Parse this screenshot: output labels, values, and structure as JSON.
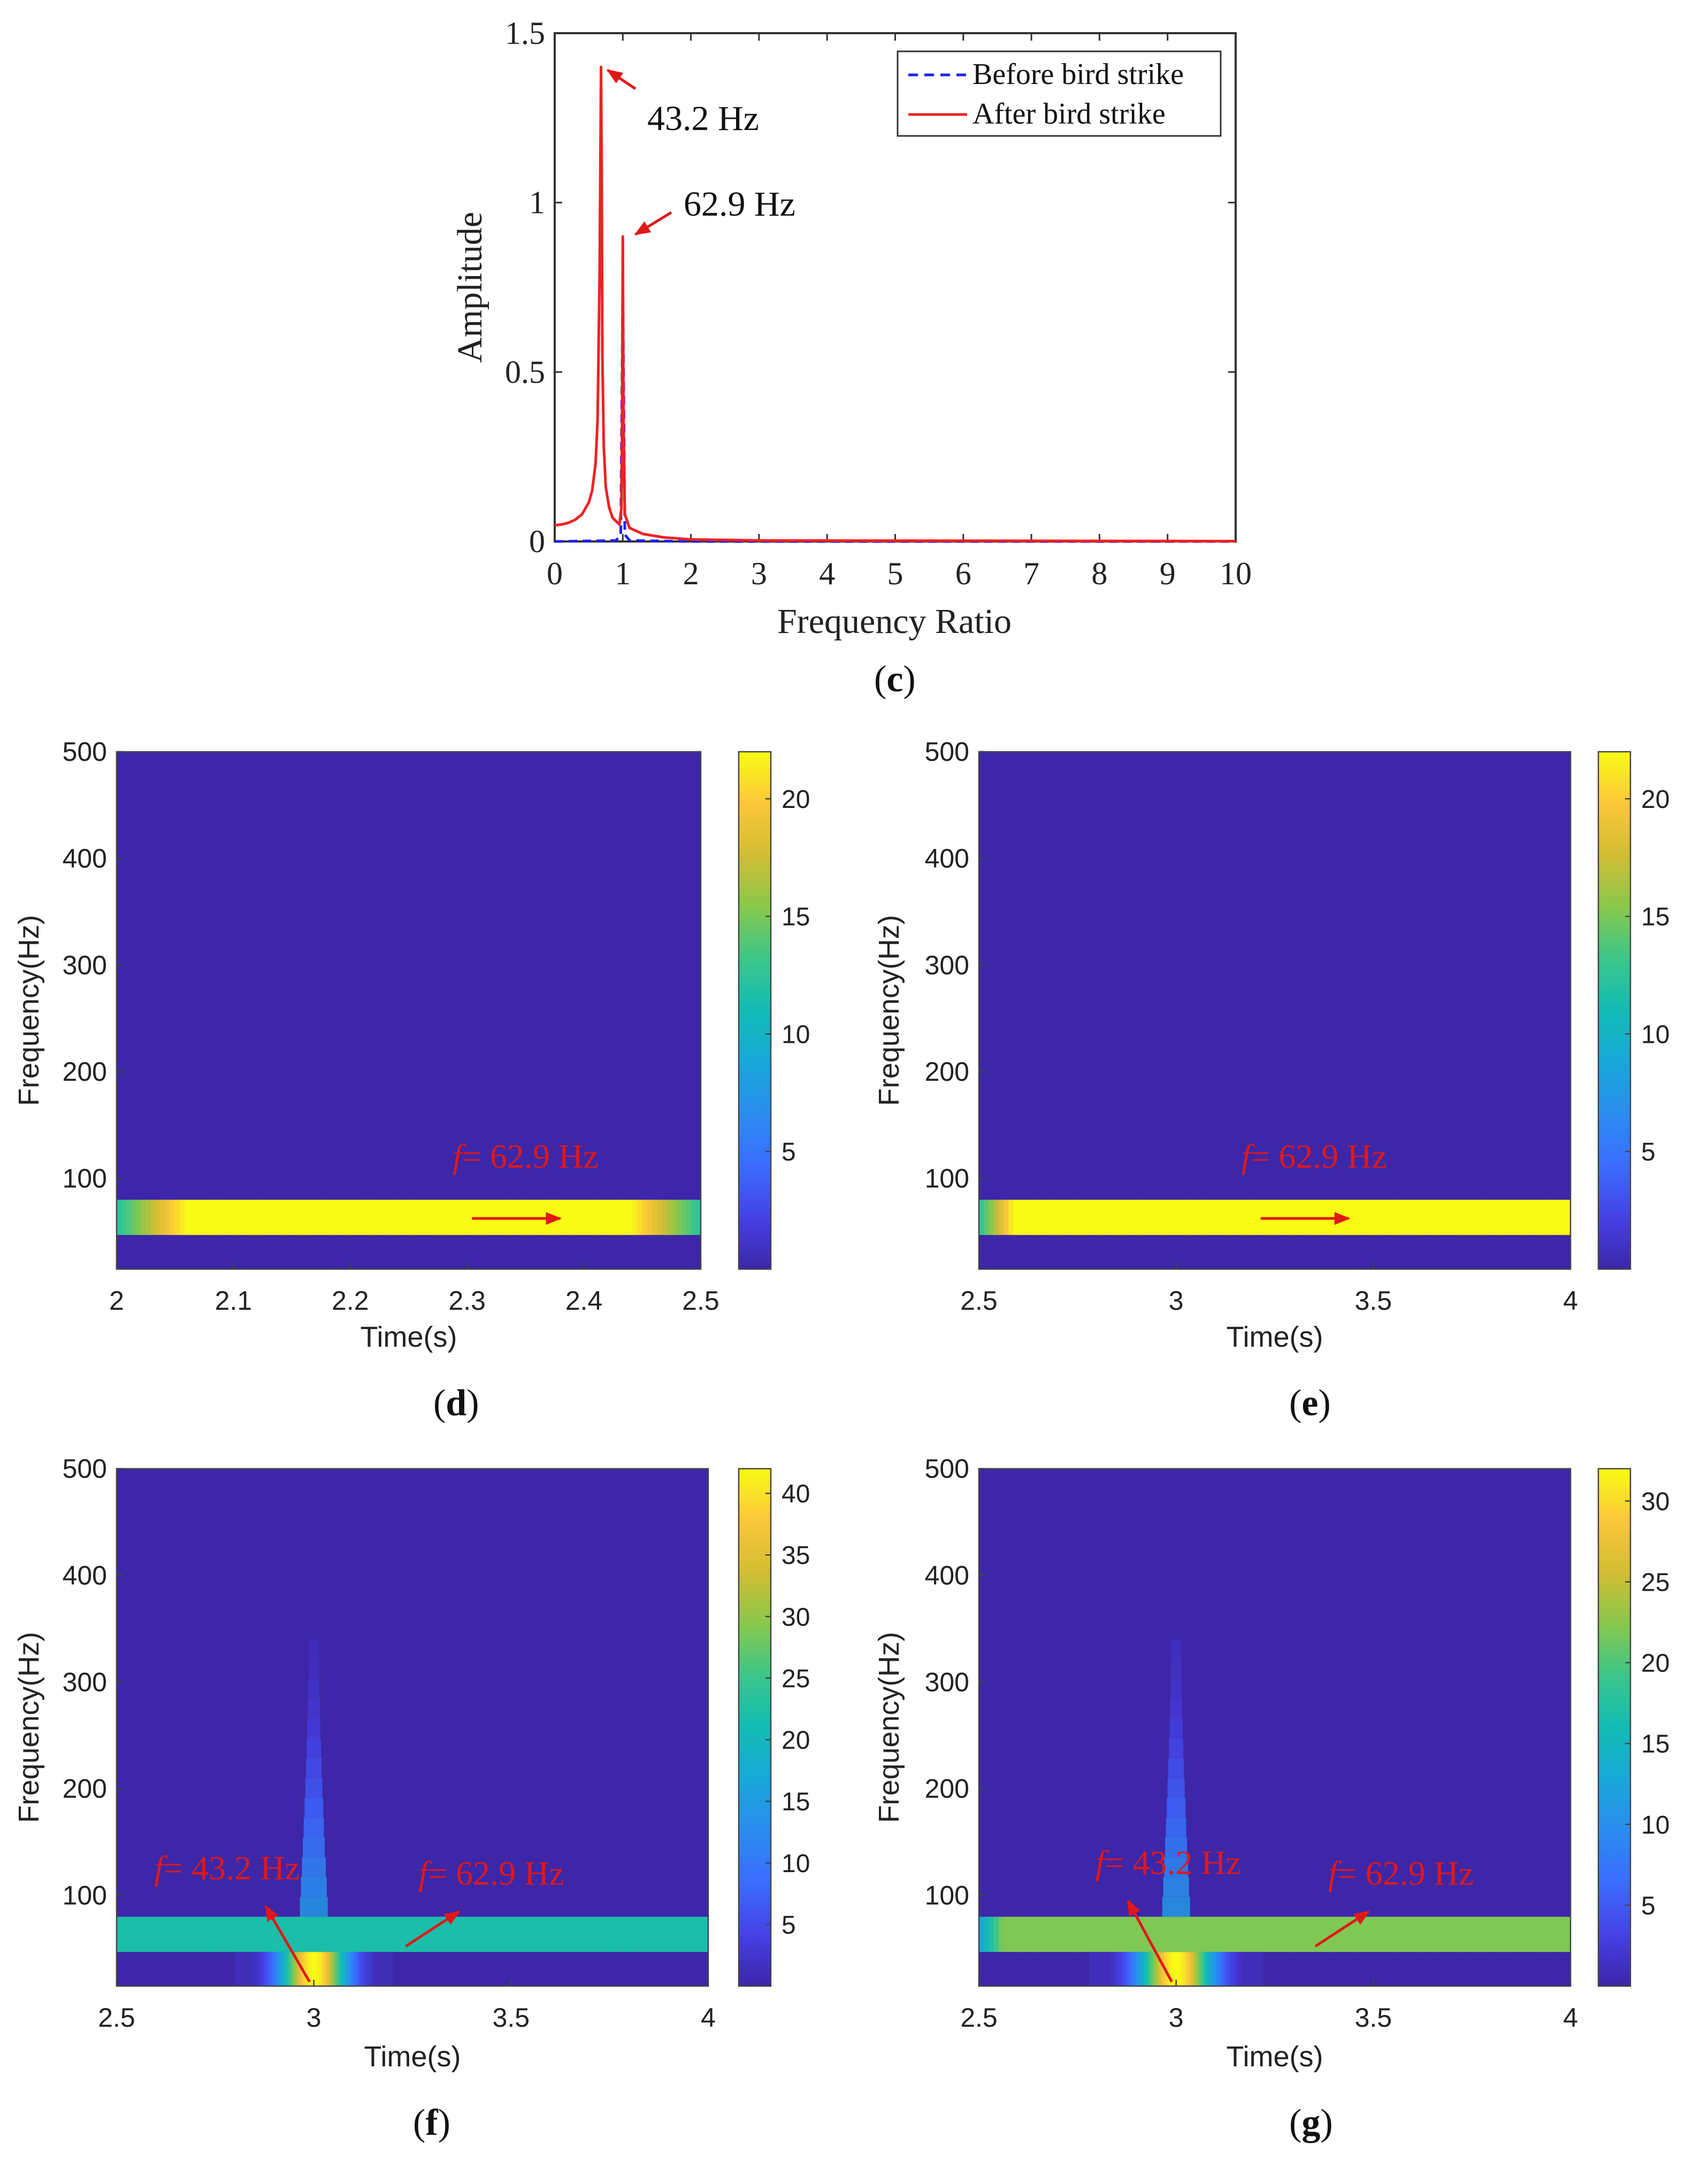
{
  "colors": {
    "before": "#1f1ff0",
    "after": "#ee2222",
    "annotation": "#e01818",
    "parula_low": "#3d26a8",
    "parula_high": "#f9fb14"
  },
  "chart_data": [
    {
      "id": "c",
      "type": "line",
      "panel_label": "c",
      "xlabel": "Frequency Ratio",
      "ylabel": "Amplitude",
      "xlim": [
        0,
        10
      ],
      "ylim": [
        0,
        1.5
      ],
      "xticks": [
        "0",
        "1",
        "2",
        "3",
        "4",
        "5",
        "6",
        "7",
        "8",
        "9",
        "10"
      ],
      "yticks": [
        "0",
        "0.5",
        "1",
        "1.5"
      ],
      "legend_position": "top-right",
      "series": [
        {
          "name": "Before bird strike",
          "style": "dashed",
          "x": [
            0,
            0.9,
            0.97,
            1.0,
            1.03,
            1.1,
            2,
            10
          ],
          "y": [
            0,
            0.003,
            0.02,
            0.78,
            0.02,
            0.003,
            0,
            0
          ]
        },
        {
          "name": "After bird strike",
          "style": "solid",
          "x": [
            0,
            0.1,
            0.2,
            0.3,
            0.4,
            0.5,
            0.55,
            0.6,
            0.63,
            0.66,
            0.68,
            0.69,
            0.7,
            0.72,
            0.75,
            0.8,
            0.85,
            0.9,
            0.95,
            0.98,
            0.99,
            1.0,
            1.01,
            1.03,
            1.1,
            1.3,
            1.6,
            2.0,
            3,
            10
          ],
          "y": [
            0.048,
            0.05,
            0.055,
            0.064,
            0.08,
            0.115,
            0.15,
            0.23,
            0.36,
            0.8,
            1.4,
            1.1,
            0.55,
            0.28,
            0.16,
            0.1,
            0.07,
            0.06,
            0.05,
            0.1,
            0.35,
            0.9,
            0.35,
            0.08,
            0.04,
            0.022,
            0.012,
            0.006,
            0.003,
            0.001
          ]
        }
      ],
      "annotations": [
        {
          "text": "43.2 Hz",
          "x": 0.68,
          "y": 1.4
        },
        {
          "text": "62.9 Hz",
          "x": 1.0,
          "y": 0.9
        }
      ]
    },
    {
      "id": "d",
      "type": "heatmap",
      "panel_label": "d",
      "xlabel": "Time(s)",
      "ylabel": "Frequency(Hz)",
      "xlim": [
        2,
        2.5
      ],
      "ylim": [
        15,
        500
      ],
      "xticks": [
        2,
        2.1,
        2.2,
        2.3,
        2.4,
        2.5
      ],
      "xtick_labels": [
        "2",
        "2.1",
        "2.2",
        "2.3",
        "2.4",
        "2.5"
      ],
      "yticks": [
        100,
        200,
        300,
        400,
        500
      ],
      "ytick_labels": [
        "100",
        "200",
        "300",
        "400",
        "500"
      ],
      "clim": [
        0,
        22
      ],
      "cbar_ticks": [
        5,
        10,
        15,
        20
      ],
      "cbar_tick_labels": [
        "5",
        "10",
        "15",
        "20"
      ],
      "band": {
        "fmin": 47,
        "fmax": 80,
        "value": 22,
        "edge_fade_start": 0.12,
        "edge_fade_end": 0.12
      },
      "impact": null,
      "annotations": [
        {
          "text_italic": "f",
          "text": "= 62.9 Hz",
          "x": 2.35,
          "y": 110
        }
      ]
    },
    {
      "id": "e",
      "type": "heatmap",
      "panel_label": "e",
      "xlabel": "Time(s)",
      "ylabel": "Frequency(Hz)",
      "xlim": [
        2.5,
        4
      ],
      "ylim": [
        15,
        500
      ],
      "xticks": [
        2.5,
        3,
        3.5,
        4
      ],
      "xtick_labels": [
        "2.5",
        "3",
        "3.5",
        "4"
      ],
      "yticks": [
        100,
        200,
        300,
        400,
        500
      ],
      "ytick_labels": [
        "100",
        "200",
        "300",
        "400",
        "500"
      ],
      "clim": [
        0,
        22
      ],
      "cbar_ticks": [
        5,
        10,
        15,
        20
      ],
      "cbar_tick_labels": [
        "5",
        "10",
        "15",
        "20"
      ],
      "band": {
        "fmin": 47,
        "fmax": 80,
        "value": 22,
        "edge_fade_start": 0.06,
        "edge_fade_end": 0
      },
      "impact": null,
      "annotations": [
        {
          "text_italic": "f",
          "text": "= 62.9 Hz",
          "x": 3.35,
          "y": 110
        }
      ]
    },
    {
      "id": "f",
      "type": "heatmap",
      "panel_label": "f",
      "xlabel": "Time(s)",
      "ylabel": "Frequency(Hz)",
      "xlim": [
        2.5,
        4
      ],
      "ylim": [
        15,
        500
      ],
      "xticks": [
        2.5,
        3,
        3.5,
        4
      ],
      "xtick_labels": [
        "2.5",
        "3",
        "3.5",
        "4"
      ],
      "yticks": [
        100,
        200,
        300,
        400,
        500
      ],
      "ytick_labels": [
        "100",
        "200",
        "300",
        "400",
        "500"
      ],
      "clim": [
        0,
        42
      ],
      "cbar_ticks": [
        5,
        10,
        15,
        20,
        25,
        30,
        35,
        40
      ],
      "cbar_tick_labels": [
        "5",
        "10",
        "15",
        "20",
        "25",
        "30",
        "35",
        "40"
      ],
      "band": {
        "fmin": 47,
        "fmax": 80,
        "value": 22,
        "edge_fade_start": 0,
        "edge_fade_end": 0
      },
      "impact": {
        "time": 3.0,
        "peak": 42,
        "fmin": 15,
        "fmax": 47,
        "halfwidth": 0.2,
        "streak_top": 340
      },
      "annotations": [
        {
          "text_italic": "f",
          "text": "= 43.2 Hz",
          "x": 2.78,
          "y": 115
        },
        {
          "text_italic": "f",
          "text": "= 62.9 Hz",
          "x": 3.45,
          "y": 110
        }
      ]
    },
    {
      "id": "g",
      "type": "heatmap",
      "panel_label": "g",
      "xlabel": "Time(s)",
      "ylabel": "Frequency(Hz)",
      "xlim": [
        2.5,
        4
      ],
      "ylim": [
        15,
        500
      ],
      "xticks": [
        2.5,
        3,
        3.5,
        4
      ],
      "xtick_labels": [
        "2.5",
        "3",
        "3.5",
        "4"
      ],
      "yticks": [
        100,
        200,
        300,
        400,
        500
      ],
      "ytick_labels": [
        "100",
        "200",
        "300",
        "400",
        "500"
      ],
      "clim": [
        0,
        32
      ],
      "cbar_ticks": [
        5,
        10,
        15,
        20,
        25,
        30
      ],
      "cbar_tick_labels": [
        "5",
        "10",
        "15",
        "20",
        "25",
        "30"
      ],
      "band": {
        "fmin": 47,
        "fmax": 80,
        "value": 22,
        "edge_fade_start": 0.04,
        "edge_fade_end": 0
      },
      "impact": {
        "time": 3.0,
        "peak": 32,
        "fmin": 15,
        "fmax": 80,
        "halfwidth": 0.22,
        "streak_top": 340
      },
      "annotations": [
        {
          "text_italic": "f",
          "text": "= 43.2 Hz",
          "x": 2.98,
          "y": 120
        },
        {
          "text_italic": "f",
          "text": "= 62.9 Hz",
          "x": 3.57,
          "y": 110
        }
      ]
    }
  ]
}
